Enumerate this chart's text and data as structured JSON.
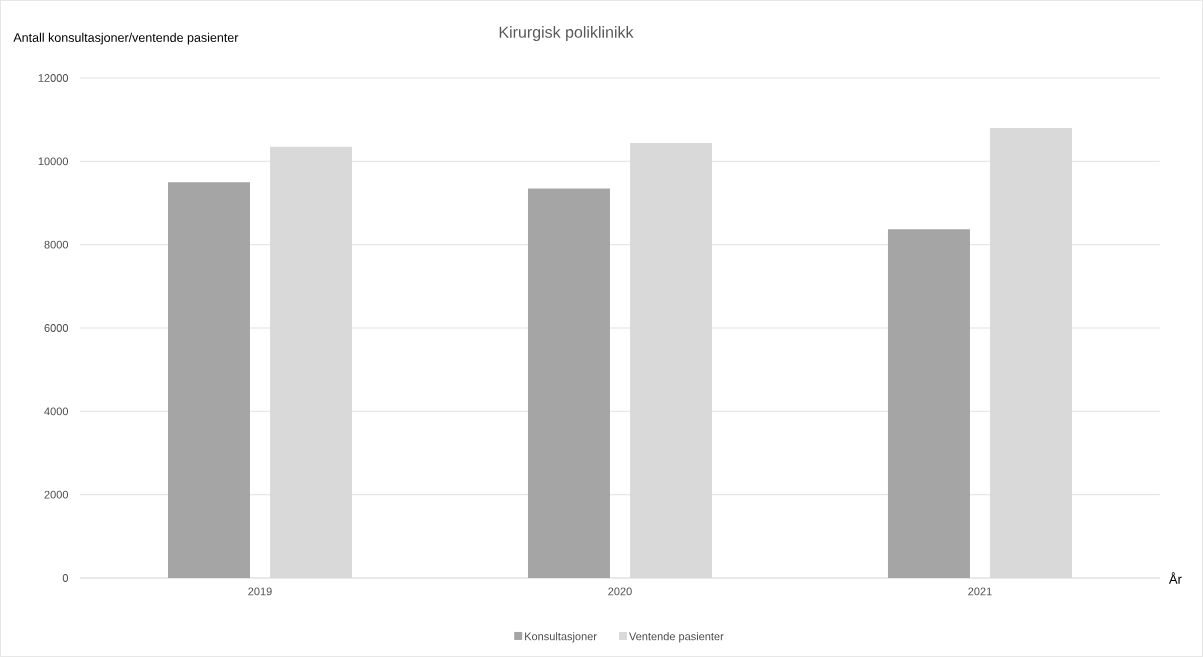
{
  "chart_data": {
    "type": "bar",
    "title": "Kirurgisk poliklinikk",
    "ylabel": "Antall konsultasjoner/ventende pasienter",
    "xlabel": "År",
    "categories": [
      "2019",
      "2020",
      "2021"
    ],
    "series": [
      {
        "name": "Konsultasjoner",
        "color": "#a5a5a5",
        "values": [
          9500,
          9350,
          8370
        ]
      },
      {
        "name": "Ventende pasienter",
        "color": "#d9d9d9",
        "values": [
          10350,
          10440,
          10800
        ]
      }
    ],
    "ylim": [
      0,
      12000
    ],
    "yticks": [
      0,
      2000,
      4000,
      6000,
      8000,
      10000,
      12000
    ],
    "grid": "y",
    "legend": "bottom"
  }
}
